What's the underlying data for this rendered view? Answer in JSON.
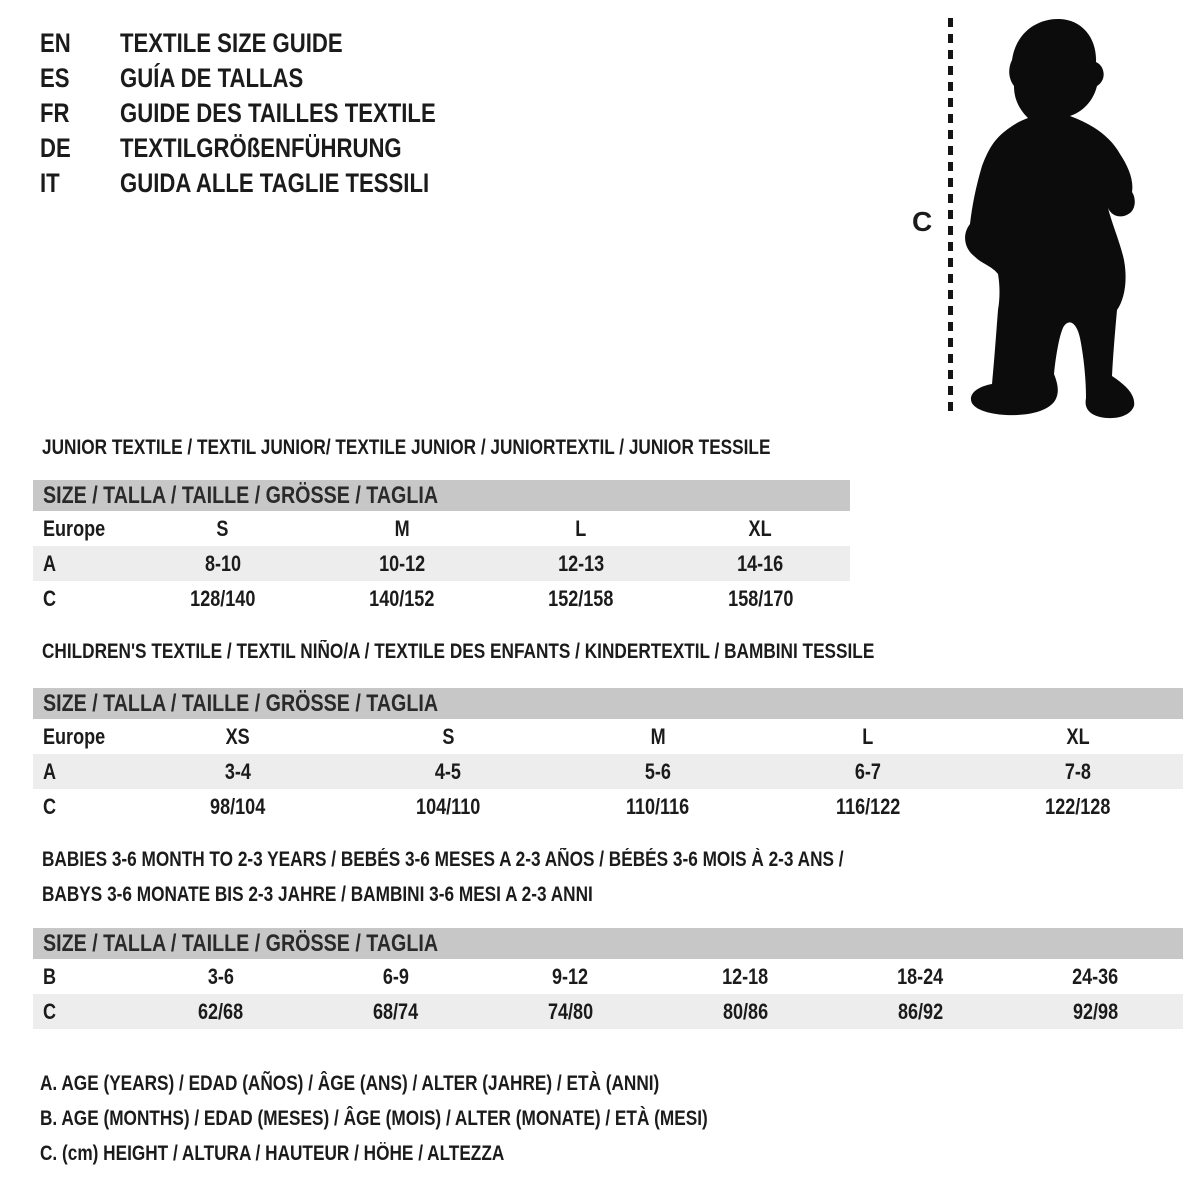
{
  "languages": [
    {
      "code": "EN",
      "title": "TEXTILE SIZE GUIDE"
    },
    {
      "code": "ES",
      "title": "GUÍA DE TALLAS"
    },
    {
      "code": "FR",
      "title": "GUIDE DES TAILLES TEXTILE"
    },
    {
      "code": "DE",
      "title": "TEXTILGRÖßENFÜHRUNG"
    },
    {
      "code": "IT",
      "title": "GUIDA ALLE TAGLIE TESSILI"
    }
  ],
  "figure": {
    "height_label": "C"
  },
  "colors": {
    "header_bar": "#c7c7c7",
    "row_stripe": "#ededed",
    "text": "#1b1b1b"
  },
  "tables": [
    {
      "title": "JUNIOR TEXTILE / TEXTIL JUNIOR/ TEXTILE JUNIOR / JUNIORTEXTIL / JUNIOR TESSILE",
      "title2": "",
      "header": "SIZE / TALLA / TAILLE / GRÖSSE / TAGLIA",
      "rows": [
        {
          "label": "Europe",
          "cells": [
            "S",
            "M",
            "L",
            "XL"
          ],
          "shade": false
        },
        {
          "label": "A",
          "cells": [
            "8-10",
            "10-12",
            "12-13",
            "14-16"
          ],
          "shade": true
        },
        {
          "label": "C",
          "cells": [
            "128/140",
            "140/152",
            "152/158",
            "158/170"
          ],
          "shade": false
        }
      ]
    },
    {
      "title": "CHILDREN'S TEXTILE / TEXTIL NIÑO/A / TEXTILE DES ENFANTS / KINDERTEXTIL / BAMBINI TESSILE",
      "title2": "",
      "header": "SIZE / TALLA / TAILLE / GRÖSSE / TAGLIA",
      "rows": [
        {
          "label": "Europe",
          "cells": [
            "XS",
            "S",
            "M",
            "L",
            "XL"
          ],
          "shade": false
        },
        {
          "label": "A",
          "cells": [
            "3-4",
            "4-5",
            "5-6",
            "6-7",
            "7-8"
          ],
          "shade": true
        },
        {
          "label": "C",
          "cells": [
            "98/104",
            "104/110",
            "110/116",
            "116/122",
            "122/128"
          ],
          "shade": false
        }
      ]
    },
    {
      "title": "BABIES 3-6 MONTH TO 2-3 YEARS / BEBÉS 3-6 MESES A 2-3 AÑOS / BÉBÉS 3-6 MOIS À 2-3 ANS /",
      "title2": "BABYS 3-6 MONATE BIS 2-3 JAHRE / BAMBINI 3-6 MESI A 2-3 ANNI",
      "header": "SIZE / TALLA / TAILLE / GRÖSSE / TAGLIA",
      "rows": [
        {
          "label": "B",
          "cells": [
            "3-6",
            "6-9",
            "9-12",
            "12-18",
            "18-24",
            "24-36"
          ],
          "shade": false
        },
        {
          "label": "C",
          "cells": [
            "62/68",
            "68/74",
            "74/80",
            "80/86",
            "86/92",
            "92/98"
          ],
          "shade": true
        }
      ]
    }
  ],
  "notes": [
    "A. AGE (YEARS) / EDAD (AÑOS) / ÂGE (ANS) / ALTER (JAHRE) / ETÀ (ANNI)",
    "B. AGE (MONTHS) / EDAD (MESES) / ÂGE (MOIS) / ALTER (MONATE) / ETÀ (MESI)",
    "C. (cm) HEIGHT / ALTURA / HAUTEUR / HÖHE / ALTEZZA"
  ]
}
